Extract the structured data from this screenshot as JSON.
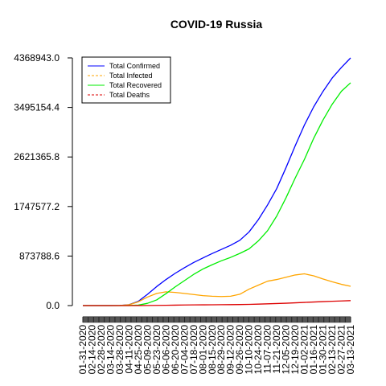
{
  "chart_data": {
    "type": "line",
    "title": "COVID-19 Russia",
    "xlabel": "",
    "ylabel": "",
    "x": [
      "01-31-2020",
      "02-14-2020",
      "02-28-2020",
      "03-14-2020",
      "03-28-2020",
      "04-11-2020",
      "04-25-2020",
      "05-09-2020",
      "05-23-2020",
      "06-06-2020",
      "06-20-2020",
      "07-04-2020",
      "07-18-2020",
      "08-01-2020",
      "08-15-2020",
      "08-29-2020",
      "09-12-2020",
      "09-26-2020",
      "10-10-2020",
      "10-24-2020",
      "11-07-2020",
      "11-21-2020",
      "12-05-2020",
      "12-19-2020",
      "01-02-2021",
      "01-16-2021",
      "01-30-2021",
      "02-13-2021",
      "02-27-2021",
      "03-13-2021"
    ],
    "xtick_labels": [
      "01-31-2020",
      "02-14-2020",
      "02-28-2020",
      "03-14-2020",
      "03-28-2020",
      "04-11-2020",
      "04-25-2020",
      "05-09-2020",
      "05-23-2020",
      "06-06-2020",
      "06-20-2020",
      "07-04-2020",
      "07-18-2020",
      "08-01-2020",
      "08-15-2020",
      "08-29-2020",
      "09-12-2020",
      "09-26-2020",
      "10-10-2020",
      "10-24-2020",
      "11-07-2020",
      "11-21-2020",
      "12-05-2020",
      "12-19-2020",
      "01-02-2021",
      "01-16-2021",
      "01-30-2021",
      "02-13-2021",
      "02-27-2021",
      "03-13-2021"
    ],
    "yticks": [
      0.0,
      873788.6,
      1747577.2,
      2621365.8,
      3495154.4,
      4368943.0
    ],
    "ytick_labels": [
      "0.0",
      "873788.6",
      "1747577.2",
      "2621365.8",
      "3495154.4",
      "4368943.0"
    ],
    "ylim": [
      0,
      4368943
    ],
    "grid": false,
    "legend_position": "top-left",
    "series": [
      {
        "name": "Total Confirmed",
        "color": "#0000ff",
        "dash": "solid",
        "values": [
          2,
          2,
          2,
          63,
          1264,
          15770,
          74588,
          198676,
          335882,
          458689,
          569063,
          667883,
          759203,
          839981,
          917884,
          990326,
          1062811,
          1151438,
          1298718,
          1513877,
          1774334,
          2064748,
          2431731,
          2819429,
          3186276,
          3505722,
          3775368,
          4013000,
          4200000,
          4368943
        ]
      },
      {
        "name": "Total Infected",
        "color": "#ffa500",
        "dash": "dashed",
        "values": [
          2,
          2,
          0,
          60,
          1200,
          14500,
          66000,
          150000,
          214000,
          243000,
          232000,
          215000,
          195000,
          175000,
          165000,
          160000,
          165000,
          200000,
          290000,
          360000,
          430000,
          460000,
          500000,
          540000,
          560000,
          525000,
          470000,
          420000,
          375000,
          340000
        ]
      },
      {
        "name": "Total Recovered",
        "color": "#00ee00",
        "dash": "solid",
        "values": [
          0,
          0,
          2,
          3,
          64,
          1200,
          8000,
          40000,
          100000,
          210000,
          330000,
          440000,
          550000,
          645000,
          720000,
          790000,
          850000,
          920000,
          1000000,
          1140000,
          1320000,
          1580000,
          1900000,
          2250000,
          2580000,
          2950000,
          3270000,
          3550000,
          3780000,
          3930000
        ]
      },
      {
        "name": "Total Deaths",
        "color": "#dd0000",
        "dash": "dashed",
        "values": [
          0,
          0,
          0,
          0,
          1,
          130,
          680,
          1900,
          3400,
          5800,
          8100,
          10300,
          11900,
          13200,
          14400,
          15600,
          17000,
          18500,
          21000,
          25500,
          31000,
          36000,
          42000,
          49000,
          56000,
          63000,
          70000,
          76000,
          82000,
          88000
        ]
      }
    ]
  }
}
